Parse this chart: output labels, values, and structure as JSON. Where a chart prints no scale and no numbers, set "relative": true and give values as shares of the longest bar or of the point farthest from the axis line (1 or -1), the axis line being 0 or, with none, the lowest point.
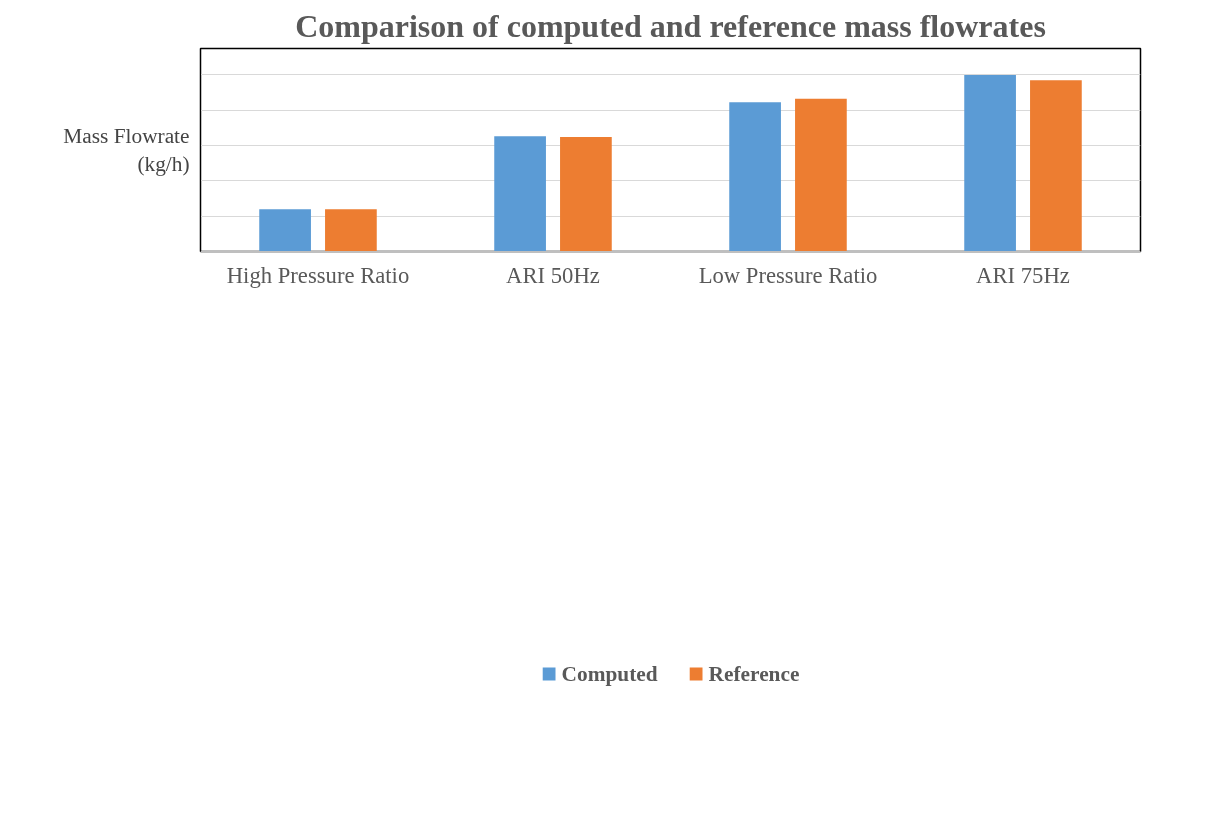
{
  "chart_data": {
    "type": "bar",
    "title": "Comparison of computed and reference mass flowrates",
    "ylabel": "Mass Flowrate\n(kg/h)",
    "categories": [
      "High Pressure Ratio",
      "ARI 50Hz",
      "Low Pressure Ratio",
      "ARI 75Hz"
    ],
    "relative": true,
    "series": [
      {
        "name": "Computed",
        "color": "#5b9bd5",
        "values": [
          0.239,
          0.653,
          0.846,
          1.0
        ]
      },
      {
        "name": "Reference",
        "color": "#ed7d31",
        "values": [
          0.239,
          0.649,
          0.865,
          0.97
        ]
      }
    ],
    "grid": "y",
    "legend": "bottom"
  }
}
